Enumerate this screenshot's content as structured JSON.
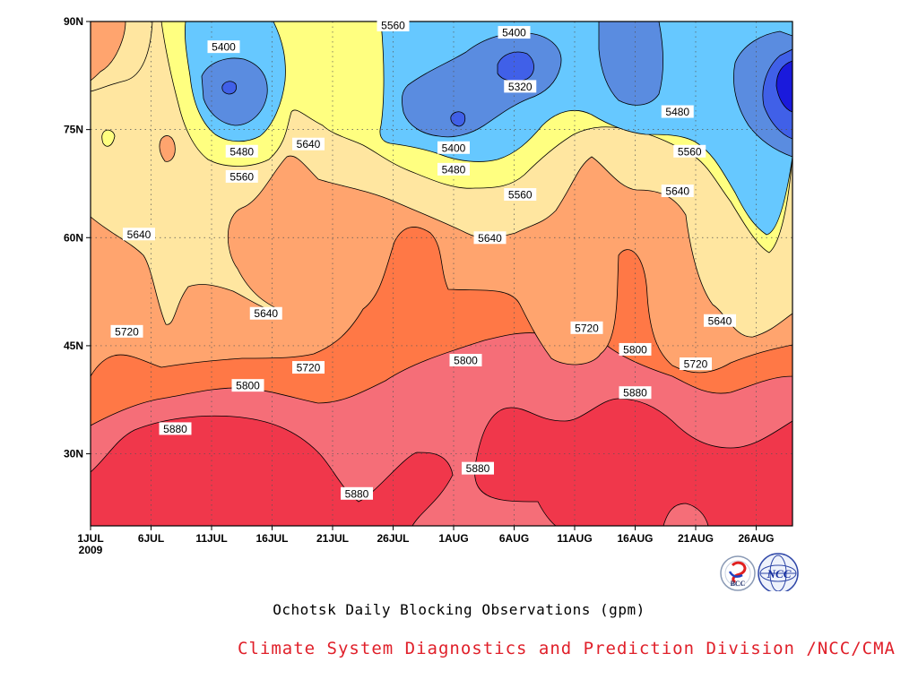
{
  "chart_data": {
    "type": "heatmap",
    "subtype": "filled-contour",
    "caption": "Ochotsk Daily Blocking Observations (gpm)",
    "credit": "Climate System Diagnostics and Prediction Division /NCC/CMA",
    "x_ticks": [
      "1JUL",
      "6JUL",
      "11JUL",
      "16JUL",
      "21JUL",
      "26JUL",
      "1AUG",
      "6AUG",
      "11AUG",
      "16AUG",
      "21AUG",
      "26AUG"
    ],
    "x_year_label": "2009",
    "y_ticks": [
      "30N",
      "45N",
      "60N",
      "75N",
      "90N"
    ],
    "y_tick_values": [
      30,
      45,
      60,
      75,
      90
    ],
    "ylim": [
      20,
      90
    ],
    "x_range_days": [
      0,
      58
    ],
    "grid": "dotted",
    "levels": [
      5320,
      5400,
      5480,
      5560,
      5640,
      5720,
      5800,
      5880
    ],
    "level_colors": [
      "#1a1adc",
      "#4060e8",
      "#5a8ce0",
      "#66c8ff",
      "#ffff80",
      "#ffe6a0",
      "#ffa46e",
      "#ff7846",
      "#f56e78",
      "#f0374b"
    ],
    "contour_labels": [
      {
        "value": "5560",
        "day": 25,
        "lat": 89.5
      },
      {
        "value": "5400",
        "day": 35,
        "lat": 88.5
      },
      {
        "value": "5400",
        "day": 11,
        "lat": 86.5
      },
      {
        "value": "5320",
        "day": 35.5,
        "lat": 81
      },
      {
        "value": "5480",
        "day": 48.5,
        "lat": 77.5
      },
      {
        "value": "5400",
        "day": 30,
        "lat": 72.5
      },
      {
        "value": "5480",
        "day": 12.5,
        "lat": 72
      },
      {
        "value": "5640",
        "day": 18,
        "lat": 73
      },
      {
        "value": "5480",
        "day": 30,
        "lat": 69.5
      },
      {
        "value": "5560",
        "day": 49.5,
        "lat": 72
      },
      {
        "value": "5560",
        "day": 12.5,
        "lat": 68.5
      },
      {
        "value": "5560",
        "day": 35.5,
        "lat": 66
      },
      {
        "value": "5640",
        "day": 48.5,
        "lat": 66.5
      },
      {
        "value": "5640",
        "day": 4,
        "lat": 60.5
      },
      {
        "value": "5640",
        "day": 33,
        "lat": 60
      },
      {
        "value": "5640",
        "day": 14.5,
        "lat": 49.5
      },
      {
        "value": "5640",
        "day": 52,
        "lat": 48.5
      },
      {
        "value": "5720",
        "day": 3,
        "lat": 47
      },
      {
        "value": "5720",
        "day": 41,
        "lat": 47.5
      },
      {
        "value": "5800",
        "day": 31,
        "lat": 43
      },
      {
        "value": "5800",
        "day": 45,
        "lat": 44.5
      },
      {
        "value": "5720",
        "day": 18,
        "lat": 42
      },
      {
        "value": "5720",
        "day": 50,
        "lat": 42.5
      },
      {
        "value": "5800",
        "day": 13,
        "lat": 39.5
      },
      {
        "value": "5880",
        "day": 45,
        "lat": 38.5
      },
      {
        "value": "5880",
        "day": 7,
        "lat": 33.5
      },
      {
        "value": "5880",
        "day": 32,
        "lat": 28
      },
      {
        "value": "5880",
        "day": 22,
        "lat": 24.5
      }
    ]
  }
}
